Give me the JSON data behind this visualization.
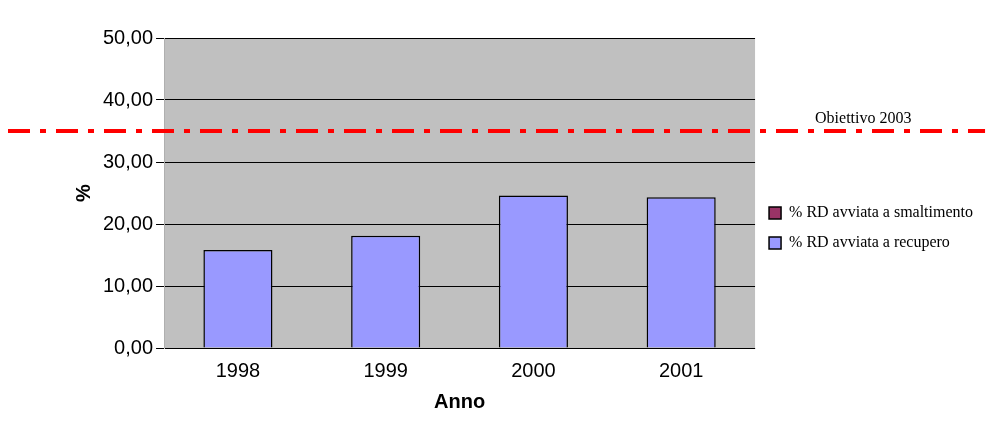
{
  "chart_data": {
    "type": "bar",
    "stacked": true,
    "xlabel": "Anno",
    "ylabel": "%",
    "categories": [
      "1998",
      "1999",
      "2000",
      "2001"
    ],
    "series": [
      {
        "name": "% RD avviata a recupero",
        "color": "#9999ff",
        "values": [
          15.8,
          18.1,
          24.6,
          24.3
        ]
      },
      {
        "name": "% RD avviata a smaltimento",
        "color": "#993366",
        "values": [
          0,
          0,
          0,
          0
        ]
      }
    ],
    "ylim": [
      0,
      50
    ],
    "yticks": [
      {
        "value": 0,
        "label": "0,00"
      },
      {
        "value": 10,
        "label": "10,00"
      },
      {
        "value": 20,
        "label": "20,00"
      },
      {
        "value": 30,
        "label": "30,00"
      },
      {
        "value": 40,
        "label": "40,00"
      },
      {
        "value": 50,
        "label": "50,00"
      }
    ],
    "grid": "y",
    "legend": "right",
    "ref_lines": [
      {
        "axis": "y",
        "value": 35,
        "label": "Obiettivo 2003",
        "color": "#ff0000",
        "line_style": "dashdot"
      }
    ]
  }
}
